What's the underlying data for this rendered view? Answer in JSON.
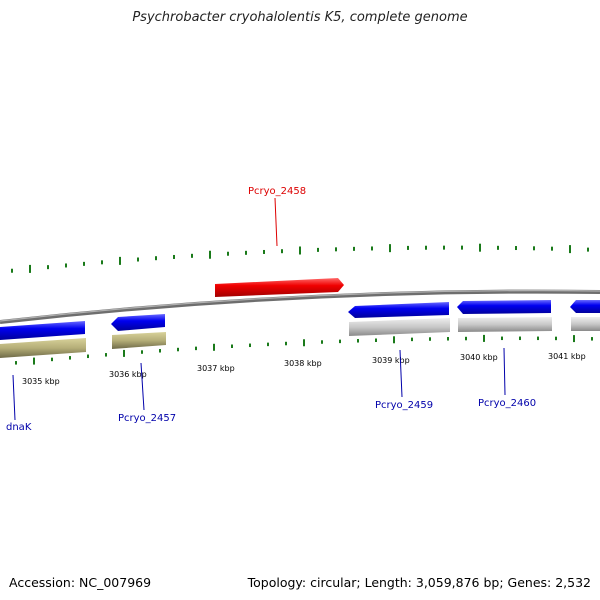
{
  "title": "Psychrobacter cryohalolentis K5, complete genome",
  "footer": {
    "accession": "Accession: NC_007969",
    "topology": "Topology: circular; Length: 3,059,876 bp; Genes: 2,532"
  },
  "colors": {
    "forward_gene": "#0000ee",
    "reverse_gene_shadow": "#b5ae78",
    "highlight_gene": "#ee0000",
    "grey_gene": "#c4c4c4",
    "backbone": "#808080",
    "gc_ticks": "#1a7a1a",
    "label_blue": "#0000aa",
    "label_red": "#dd0000"
  },
  "scale_ticks": [
    "3035 kbp",
    "3036 kbp",
    "3037 kbp",
    "3038 kbp",
    "3039 kbp",
    "3040 kbp",
    "3041 kbp"
  ],
  "gene_labels": [
    {
      "name": "dnaK",
      "color": "blue"
    },
    {
      "name": "Pcryo_2457",
      "color": "blue"
    },
    {
      "name": "Pcryo_2458",
      "color": "red"
    },
    {
      "name": "Pcryo_2459",
      "color": "blue"
    },
    {
      "name": "Pcryo_2460",
      "color": "blue"
    }
  ]
}
